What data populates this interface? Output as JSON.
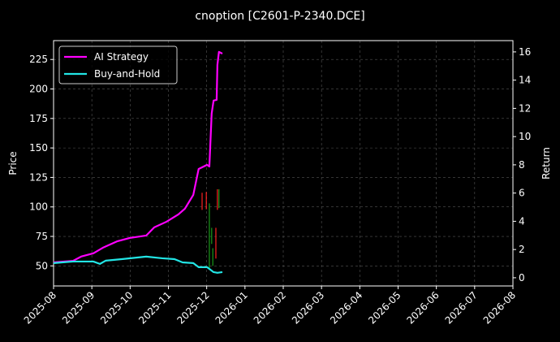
{
  "chart_data": {
    "type": "line",
    "title": "cnoption [C2601-P-2340.DCE]",
    "ylabel": "Price",
    "y2label": "Return",
    "xlim": [
      0,
      12
    ],
    "xticks": [
      {
        "value": 0,
        "label": "2025-08"
      },
      {
        "value": 1,
        "label": "2025-09"
      },
      {
        "value": 2,
        "label": "2025-10"
      },
      {
        "value": 3,
        "label": "2025-11"
      },
      {
        "value": 4,
        "label": "2025-12"
      },
      {
        "value": 5,
        "label": "2026-01"
      },
      {
        "value": 6,
        "label": "2026-02"
      },
      {
        "value": 7,
        "label": "2026-03"
      },
      {
        "value": 8,
        "label": "2026-04"
      },
      {
        "value": 9,
        "label": "2026-05"
      },
      {
        "value": 10,
        "label": "2026-06"
      },
      {
        "value": 11,
        "label": "2026-07"
      },
      {
        "value": 12,
        "label": "2026-08"
      }
    ],
    "ylim": [
      33,
      241
    ],
    "yticks": [
      50,
      75,
      100,
      125,
      150,
      175,
      200,
      225
    ],
    "y2lim": [
      -0.58,
      16.8
    ],
    "y2ticks": [
      0,
      2,
      4,
      6,
      8,
      10,
      12,
      14,
      16
    ],
    "grid": true,
    "legend": "upper left",
    "series": [
      {
        "name": "AI Strategy",
        "color": "#ff00ff",
        "axis": "y2",
        "x": [
          0,
          0.51,
          0.72,
          1.04,
          1.29,
          1.67,
          1.99,
          2.42,
          2.63,
          2.95,
          3.26,
          3.43,
          3.65,
          3.79,
          4.01,
          4.07,
          4.13,
          4.18,
          4.26,
          4.28,
          4.32,
          4.41
        ],
        "values": [
          1.09,
          1.2,
          1.5,
          1.73,
          2.13,
          2.59,
          2.82,
          2.99,
          3.57,
          3.97,
          4.49,
          4.89,
          5.87,
          7.71,
          8.0,
          7.88,
          11.63,
          12.55,
          12.6,
          15.08,
          16.0,
          15.88
        ]
      },
      {
        "name": "Buy-and-Hold",
        "color": "#22e5e5",
        "axis": "y2",
        "x": [
          0,
          0.51,
          1.04,
          1.21,
          1.36,
          1.78,
          2.42,
          2.84,
          3.16,
          3.37,
          3.65,
          3.79,
          4.01,
          4.18,
          4.28,
          4.41
        ],
        "values": [
          1.04,
          1.15,
          1.15,
          0.98,
          1.21,
          1.32,
          1.5,
          1.38,
          1.32,
          1.09,
          1.04,
          0.75,
          0.75,
          0.4,
          0.35,
          0.4
        ]
      }
    ],
    "candles": {
      "x": [
        3.88,
        3.99,
        4.07,
        4.13,
        4.16,
        4.24,
        4.28,
        4.32
      ],
      "low": [
        97.5,
        98,
        48,
        68.6,
        50,
        56.2,
        97.5,
        99
      ],
      "high": [
        112,
        112.7,
        103,
        82.3,
        65,
        82.3,
        115,
        115
      ],
      "colors": [
        "#ff2020",
        "#ff2020",
        "#1a9a1a",
        "#1a9a1a",
        "#1a9a1a",
        "#ff2020",
        "#ff2020",
        "#1a9a1a"
      ]
    }
  }
}
